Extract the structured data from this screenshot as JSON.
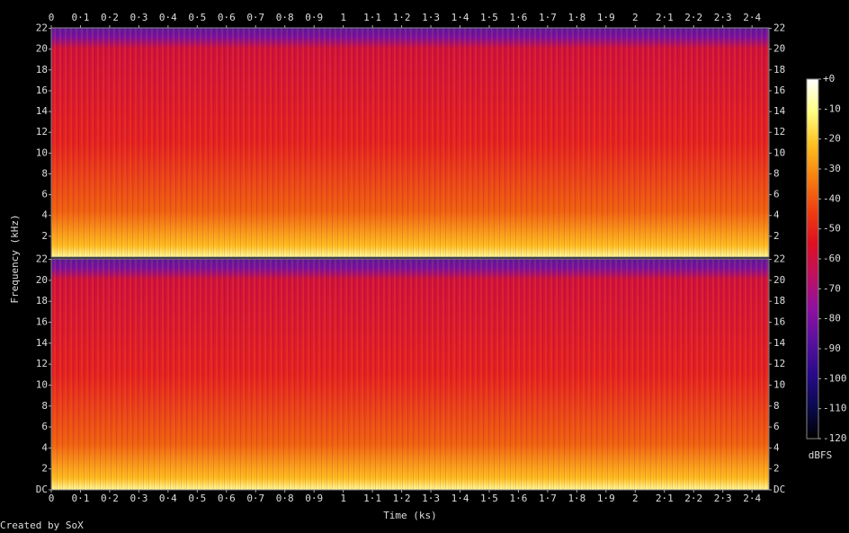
{
  "chart_data": {
    "type": "spectrogram",
    "x_label": "Time (ks)",
    "y_label": "Frequency (kHz)",
    "colorbar_label": "dBFS",
    "credit": "Created by SoX",
    "xlim": [
      0,
      2.458
    ],
    "xticks": [
      0,
      {
        "value": 0.1,
        "label": "0·1"
      },
      {
        "value": 0.2,
        "label": "0·2"
      },
      {
        "value": 0.3,
        "label": "0·3"
      },
      {
        "value": 0.4,
        "label": "0·4"
      },
      {
        "value": 0.5,
        "label": "0·5"
      },
      {
        "value": 0.6,
        "label": "0·6"
      },
      {
        "value": 0.7,
        "label": "0·7"
      },
      {
        "value": 0.8,
        "label": "0·8"
      },
      {
        "value": 0.9,
        "label": "0·9"
      },
      1,
      {
        "value": 1.1,
        "label": "1·1"
      },
      {
        "value": 1.2,
        "label": "1·2"
      },
      {
        "value": 1.3,
        "label": "1·3"
      },
      {
        "value": 1.4,
        "label": "1·4"
      },
      {
        "value": 1.5,
        "label": "1·5"
      },
      {
        "value": 1.6,
        "label": "1·6"
      },
      {
        "value": 1.7,
        "label": "1·7"
      },
      {
        "value": 1.8,
        "label": "1·8"
      },
      {
        "value": 1.9,
        "label": "1·9"
      },
      2,
      {
        "value": 2.1,
        "label": "2·1"
      },
      {
        "value": 2.2,
        "label": "2·2"
      },
      {
        "value": 2.3,
        "label": "2·3"
      },
      {
        "value": 2.4,
        "label": "2·4"
      }
    ],
    "panels": [
      {
        "ylim": [
          0,
          22.05
        ],
        "yticks": [
          2,
          4,
          6,
          8,
          10,
          12,
          14,
          16,
          18,
          20,
          22
        ]
      },
      {
        "ylim": [
          0,
          22.05
        ],
        "yticks": [
          {
            "value": 0,
            "label": "DC"
          },
          2,
          4,
          6,
          8,
          10,
          12,
          14,
          16,
          18,
          20,
          22
        ]
      }
    ],
    "zlim": [
      -120,
      0
    ],
    "zticks": [
      {
        "value": 0,
        "label": "+0"
      },
      -10,
      -20,
      -30,
      -40,
      -50,
      -60,
      -70,
      -80,
      -90,
      -100,
      -110,
      -120
    ],
    "colorscale": [
      "#000000",
      "#0a0a50",
      "#2a0a8a",
      "#5a10a0",
      "#9010a0",
      "#c01060",
      "#e01020",
      "#f04010",
      "#f88010",
      "#ffc020",
      "#ffff80",
      "#ffffff"
    ]
  }
}
